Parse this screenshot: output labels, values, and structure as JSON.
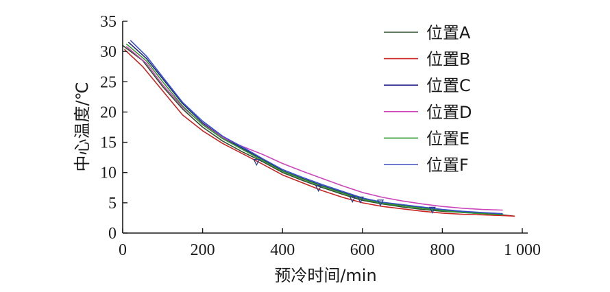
{
  "chart_data": {
    "type": "line",
    "title": "",
    "xlabel": "预冷时间/min",
    "ylabel": "中心温度/℃",
    "xlim": [
      0,
      1000
    ],
    "ylim": [
      0,
      35
    ],
    "x_ticks": [
      0,
      200,
      400,
      600,
      800,
      1000
    ],
    "x_tick_labels": [
      "0",
      "200",
      "400",
      "600",
      "800",
      "1 000"
    ],
    "y_ticks": [
      0,
      5,
      10,
      15,
      20,
      25,
      30,
      35
    ],
    "y_tick_labels": [
      "0",
      "5",
      "10",
      "15",
      "20",
      "25",
      "30",
      "35"
    ],
    "grid": false,
    "legend_position": "top-right",
    "series": [
      {
        "name": "位置A",
        "color": "#2f4f2f",
        "x": [
          0,
          50,
          100,
          150,
          200,
          250,
          300,
          350,
          400,
          450,
          500,
          550,
          600,
          650,
          700,
          750,
          800,
          850,
          900,
          950,
          980
        ],
        "y": [
          31.0,
          28.5,
          24.2,
          20.5,
          17.5,
          15.2,
          13.4,
          11.8,
          10.0,
          8.7,
          7.5,
          6.4,
          5.4,
          4.8,
          4.3,
          3.9,
          3.6,
          3.4,
          3.2,
          3.0,
          2.8
        ]
      },
      {
        "name": "位置B",
        "color": "#cc2222",
        "x": [
          5,
          50,
          100,
          150,
          200,
          250,
          300,
          350,
          400,
          450,
          500,
          550,
          600,
          650,
          700,
          750,
          800,
          850,
          900,
          950,
          980
        ],
        "y": [
          30.3,
          27.5,
          23.5,
          19.5,
          16.9,
          14.8,
          13.1,
          11.4,
          9.6,
          8.3,
          7.0,
          5.9,
          5.0,
          4.4,
          4.0,
          3.6,
          3.3,
          3.1,
          3.0,
          2.9,
          2.8
        ]
      },
      {
        "name": "位置C",
        "color": "#22228a",
        "x": [
          15,
          60,
          100,
          150,
          200,
          250,
          300,
          350,
          400,
          450,
          500,
          550,
          600,
          650,
          700,
          750,
          800,
          850,
          900,
          950
        ],
        "y": [
          31.5,
          28.8,
          25.5,
          21.4,
          18.2,
          15.8,
          14.0,
          12.2,
          10.3,
          9.0,
          7.8,
          6.7,
          5.7,
          5.0,
          4.6,
          4.2,
          3.8,
          3.5,
          3.3,
          3.1
        ]
      },
      {
        "name": "位置D",
        "color": "#cc44bb",
        "x": [
          10,
          60,
          100,
          150,
          200,
          250,
          300,
          350,
          400,
          450,
          500,
          550,
          600,
          650,
          700,
          750,
          800,
          850,
          900,
          950
        ],
        "y": [
          30.8,
          28.0,
          24.5,
          20.8,
          18.0,
          15.8,
          14.3,
          13.0,
          11.5,
          10.2,
          9.0,
          7.8,
          6.7,
          5.9,
          5.3,
          4.8,
          4.4,
          4.1,
          3.9,
          3.8
        ]
      },
      {
        "name": "位置E",
        "color": "#2e9a2e",
        "x": [
          10,
          60,
          100,
          150,
          200,
          250,
          300,
          350,
          400,
          450,
          500,
          550,
          600,
          650,
          700,
          750,
          800,
          850,
          900,
          950
        ],
        "y": [
          31.2,
          28.4,
          25.0,
          21.0,
          17.9,
          15.6,
          13.8,
          12.0,
          10.2,
          8.9,
          7.7,
          6.6,
          5.6,
          4.9,
          4.5,
          4.1,
          3.7,
          3.4,
          3.2,
          3.0
        ]
      },
      {
        "name": "位置F",
        "color": "#3a52c4",
        "x": [
          20,
          60,
          100,
          150,
          200,
          250,
          300,
          350,
          400,
          450,
          500,
          550,
          600,
          650,
          700,
          750,
          800,
          850,
          900,
          950
        ],
        "y": [
          31.8,
          29.2,
          25.8,
          21.6,
          18.5,
          16.0,
          14.2,
          12.3,
          10.5,
          9.2,
          8.0,
          6.9,
          5.8,
          5.1,
          4.7,
          4.3,
          3.9,
          3.6,
          3.4,
          3.2
        ]
      }
    ],
    "markers": [
      {
        "x": 335,
        "y": 11.7
      },
      {
        "x": 490,
        "y": 7.4
      },
      {
        "x": 575,
        "y": 5.6
      },
      {
        "x": 595,
        "y": 5.5
      },
      {
        "x": 645,
        "y": 5.0
      },
      {
        "x": 775,
        "y": 3.8
      }
    ]
  }
}
